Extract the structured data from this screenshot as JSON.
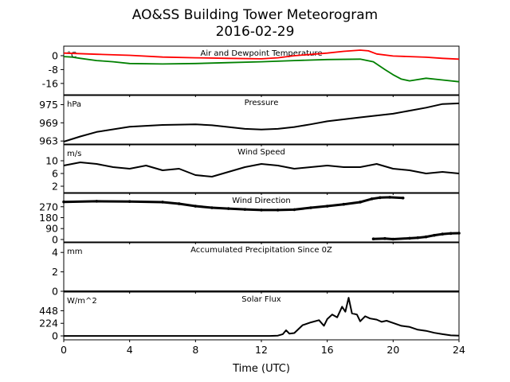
{
  "figure": {
    "title_line1": "AO&SS Building Tower Meteorogram",
    "title_line2": "2016-02-29",
    "xlabel": "Time (UTC)"
  },
  "chart_data": [
    {
      "type": "line",
      "title": "Air and Dewpoint Temperature",
      "unit": "°C",
      "xlim": [
        0,
        24
      ],
      "ylim": [
        -22.5,
        5.5
      ],
      "yticks": [
        0,
        -8,
        -16
      ],
      "series": [
        {
          "color": "#ff0000",
          "x": [
            0,
            2,
            4,
            6,
            8,
            10,
            12,
            13,
            14,
            16,
            17,
            18,
            18.5,
            19,
            20,
            21,
            22,
            23,
            24
          ],
          "y": [
            1.5,
            0.8,
            0.2,
            -0.8,
            -1.2,
            -1.5,
            -1.8,
            -1.2,
            0,
            1.5,
            2.5,
            3.2,
            2.8,
            1.0,
            -0.2,
            -0.5,
            -0.9,
            -1.5,
            -2.0
          ]
        },
        {
          "color": "#008000",
          "x": [
            0,
            0.5,
            1,
            2,
            3,
            4,
            6,
            8,
            10,
            12,
            14,
            16,
            18,
            18.8,
            19.5,
            20,
            20.5,
            21,
            22,
            23,
            24
          ],
          "y": [
            -0.5,
            -0.8,
            -1.5,
            -2.8,
            -3.5,
            -4.5,
            -4.8,
            -4.5,
            -4.0,
            -3.5,
            -2.8,
            -2.2,
            -2.0,
            -3.5,
            -8.0,
            -11.0,
            -13.5,
            -14.5,
            -13.0,
            -14.0,
            -15.0
          ]
        }
      ]
    },
    {
      "type": "line",
      "title": "Pressure",
      "unit": "hPa",
      "xlim": [
        0,
        24
      ],
      "ylim": [
        962,
        978
      ],
      "yticks": [
        975,
        969,
        963
      ],
      "series": [
        {
          "color": "#000000",
          "x": [
            0,
            1,
            2,
            4,
            6,
            8,
            9,
            10,
            11,
            12,
            13,
            14,
            15,
            16,
            18,
            20,
            22,
            23,
            24
          ],
          "y": [
            962.8,
            964.5,
            966,
            967.7,
            968.3,
            968.5,
            968.2,
            967.6,
            967,
            966.8,
            967,
            967.6,
            968.5,
            969.5,
            970.8,
            972,
            974,
            975.2,
            975.4
          ]
        }
      ]
    },
    {
      "type": "line",
      "title": "Wind Speed",
      "unit": "m/s",
      "xlim": [
        0,
        24
      ],
      "ylim": [
        0,
        15
      ],
      "yticks": [
        10,
        6,
        2
      ],
      "series": [
        {
          "color": "#000000",
          "x": [
            0,
            1,
            2,
            3,
            4,
            5,
            6,
            7,
            8,
            9,
            10,
            11,
            12,
            13,
            14,
            15,
            16,
            17,
            18,
            19,
            20,
            21,
            22,
            23,
            24
          ],
          "y": [
            8.5,
            9.5,
            9.0,
            8.0,
            7.5,
            8.5,
            7.0,
            7.5,
            5.5,
            5.0,
            6.5,
            8.0,
            9.0,
            8.5,
            7.5,
            8.0,
            8.5,
            8.0,
            8.0,
            9.0,
            7.5,
            7.0,
            6.0,
            6.5,
            6.0
          ]
        }
      ]
    },
    {
      "type": "scatter",
      "title": "Wind Direction",
      "xlim": [
        0,
        24
      ],
      "ylim": [
        -20,
        380
      ],
      "yticks": [
        270,
        180,
        90,
        0
      ],
      "series": [
        {
          "color": "#000000",
          "x": [
            0,
            2,
            4,
            6,
            7,
            8,
            9,
            10,
            11,
            12,
            13,
            14,
            15,
            16,
            17,
            18,
            18.7,
            19.2,
            19.8,
            20.6
          ],
          "y": [
            310,
            315,
            313,
            308,
            295,
            275,
            262,
            255,
            248,
            243,
            243,
            246,
            262,
            275,
            290,
            308,
            335,
            345,
            348,
            342
          ]
        },
        {
          "color": "#000000",
          "x": [
            18.8,
            19.5,
            20,
            21,
            21.5,
            22,
            22.5,
            23,
            23.5,
            24
          ],
          "y": [
            5,
            8,
            3,
            10,
            15,
            22,
            35,
            45,
            50,
            52
          ]
        }
      ]
    },
    {
      "type": "line",
      "title": "Accumulated Precipitation Since 0Z",
      "unit": "mm",
      "xlim": [
        0,
        24
      ],
      "ylim": [
        0,
        5
      ],
      "yticks": [
        4,
        2,
        0
      ],
      "series": [
        {
          "color": "#000000",
          "x": [
            0,
            24
          ],
          "y": [
            0,
            0
          ]
        }
      ]
    },
    {
      "type": "line",
      "title": "Solar Flux",
      "unit": "W/m^2",
      "xlim": [
        0,
        24
      ],
      "ylim": [
        -70,
        780
      ],
      "yticks": [
        448,
        224,
        0
      ],
      "series": [
        {
          "color": "#000000",
          "x": [
            0,
            12.5,
            13,
            13.3,
            13.5,
            13.7,
            14,
            14.5,
            15,
            15.5,
            15.8,
            16,
            16.3,
            16.6,
            16.9,
            17.1,
            17.3,
            17.5,
            17.8,
            18,
            18.3,
            18.6,
            19,
            19.3,
            19.6,
            20,
            20.5,
            21,
            21.5,
            22,
            22.5,
            23,
            23.5,
            24
          ],
          "y": [
            0,
            0,
            5,
            30,
            100,
            40,
            50,
            190,
            240,
            280,
            180,
            300,
            380,
            330,
            520,
            430,
            680,
            400,
            380,
            260,
            350,
            310,
            290,
            250,
            270,
            230,
            180,
            160,
            110,
            90,
            55,
            30,
            10,
            5
          ]
        }
      ]
    }
  ],
  "xaxis": {
    "ticks": [
      0,
      4,
      8,
      12,
      16,
      20,
      24
    ]
  }
}
